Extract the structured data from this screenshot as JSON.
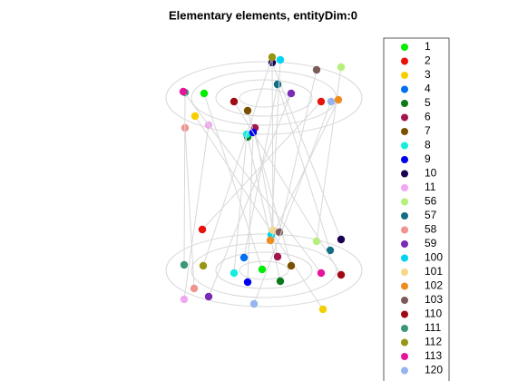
{
  "chart_data": {
    "type": "scatter3d",
    "title": "Elementary elements, entityDim:0",
    "series": [
      {
        "name": "1",
        "color": "#00ee00"
      },
      {
        "name": "2",
        "color": "#e8120b"
      },
      {
        "name": "3",
        "color": "#f5cf00"
      },
      {
        "name": "4",
        "color": "#0070f0"
      },
      {
        "name": "5",
        "color": "#0a7a1a"
      },
      {
        "name": "6",
        "color": "#a3154f"
      },
      {
        "name": "7",
        "color": "#7a4f00"
      },
      {
        "name": "8",
        "color": "#13eedd"
      },
      {
        "name": "9",
        "color": "#0000f0"
      },
      {
        "name": "10",
        "color": "#1a0050"
      },
      {
        "name": "11",
        "color": "#f0a8f0"
      },
      {
        "name": "56",
        "color": "#b4f07a"
      },
      {
        "name": "57",
        "color": "#146e82"
      },
      {
        "name": "58",
        "color": "#f09490"
      },
      {
        "name": "59",
        "color": "#7a2ab4"
      },
      {
        "name": "100",
        "color": "#00d4f0"
      },
      {
        "name": "101",
        "color": "#f5d88a"
      },
      {
        "name": "102",
        "color": "#f08c1e"
      },
      {
        "name": "103",
        "color": "#7d5a5a"
      },
      {
        "name": "110",
        "color": "#a00a14"
      },
      {
        "name": "111",
        "color": "#3c9678"
      },
      {
        "name": "112",
        "color": "#969614"
      },
      {
        "name": "113",
        "color": "#e6149b"
      },
      {
        "name": "120",
        "color": "#96b4f0"
      }
    ]
  }
}
